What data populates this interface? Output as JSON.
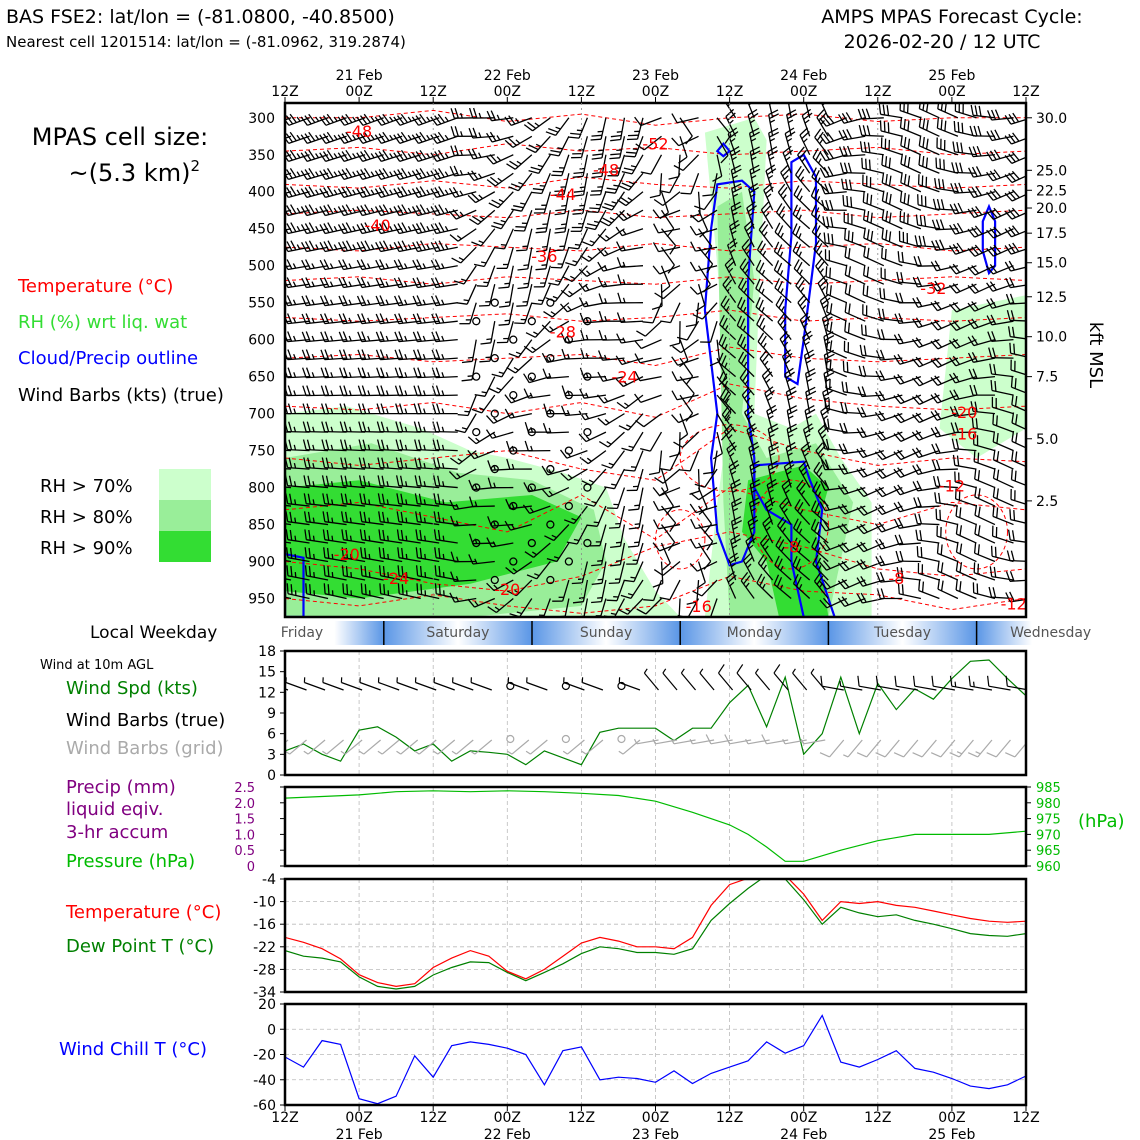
{
  "header": {
    "station_line": "BAS FSE2: lat/lon = (-81.0800, -40.8500)",
    "nearest_line": "Nearest cell 1201514: lat/lon = (-81.0962, 319.2874)",
    "forecast_title": "AMPS MPAS Forecast Cycle:",
    "forecast_cycle": "2026-02-20 / 12 UTC"
  },
  "cell_size": {
    "line1": "MPAS cell size:",
    "line2": "~(5.3 km)",
    "exp": "2"
  },
  "legend_top": {
    "temperature": "Temperature (°C)",
    "rh": "RH (%) wrt liq. wat",
    "cloud": "Cloud/Precip outline",
    "wind": "Wind Barbs (kts) (true)",
    "rh70": "RH > 70%",
    "rh80": "RH > 80%",
    "rh90": "RH > 90%"
  },
  "legend_wind": {
    "title": "Wind at 10m AGL",
    "speed": "Wind Spd (kts)",
    "barbs_true": "Wind Barbs (true)",
    "barbs_grid": "Wind Barbs (grid)"
  },
  "legend_precip": {
    "line1": "Precip (mm)",
    "line2": "liquid eqiv.",
    "line3": "3-hr accum",
    "pressure": "Pressure (hPa)"
  },
  "legend_temp": {
    "temp": "Temperature (°C)",
    "dew": "Dew Point T (°C)"
  },
  "legend_chill": {
    "label": "Wind Chill T (°C)"
  },
  "weekday": {
    "label": "Local Weekday",
    "days": [
      "Friday",
      "Saturday",
      "Sunday",
      "Monday",
      "Tuesday",
      "Wednesday"
    ]
  },
  "time_axis": {
    "ticks": [
      "12Z",
      "00Z",
      "12Z",
      "00Z",
      "12Z",
      "00Z",
      "12Z",
      "00Z",
      "12Z",
      "00Z",
      "12Z"
    ],
    "dates": [
      "21 Feb",
      "22 Feb",
      "23 Feb",
      "24 Feb",
      "25 Feb"
    ],
    "date_under": [
      1,
      3,
      5,
      7,
      9
    ]
  },
  "colors": {
    "temperature": "#ff0000",
    "rh_label": "#33dd33",
    "rh70": "#ccffcc",
    "rh80": "#99ee99",
    "rh90": "#33dd33",
    "cloud": "#0000ff",
    "wind_speed": "#008000",
    "grid_barbs": "#aaaaaa",
    "precip": "#800080",
    "pressure": "#00bb00",
    "dewpoint": "#008000",
    "wind_chill": "#0000ff",
    "weekday_band": "#5a96e6"
  },
  "chart_data": [
    {
      "type": "heatmap",
      "name": "upper-air cross-section",
      "x_range_hours": [
        0,
        120
      ],
      "yaxis_left_label_values": [
        300,
        350,
        400,
        450,
        500,
        550,
        600,
        650,
        700,
        750,
        800,
        850,
        900,
        950
      ],
      "yaxis_right_label": "kft MSL",
      "yaxis_right_ticks": [
        {
          "kft": "30.0",
          "p": 300
        },
        {
          "kft": "25.0",
          "p": 371
        },
        {
          "kft": "22.5",
          "p": 398
        },
        {
          "kft": "20.0",
          "p": 422
        },
        {
          "kft": "17.5",
          "p": 456
        },
        {
          "kft": "15.0",
          "p": 496
        },
        {
          "kft": "12.5",
          "p": 542
        },
        {
          "kft": "10.0",
          "p": 596
        },
        {
          "kft": "7.5",
          "p": 650
        },
        {
          "kft": "5.0",
          "p": 734
        },
        {
          "kft": "2.5",
          "p": 818
        }
      ],
      "temperature_labels": [
        {
          "t": "-48",
          "h": 12,
          "p": 318
        },
        {
          "t": "-52",
          "h": 60,
          "p": 335
        },
        {
          "t": "-48",
          "h": 52,
          "p": 370
        },
        {
          "t": "-44",
          "h": 45,
          "p": 403
        },
        {
          "t": "-40",
          "h": 15,
          "p": 445
        },
        {
          "t": "-36",
          "h": 42,
          "p": 487
        },
        {
          "t": "-32",
          "h": 105,
          "p": 530
        },
        {
          "t": "-28",
          "h": 45,
          "p": 589
        },
        {
          "t": "-24",
          "h": 55,
          "p": 650
        },
        {
          "t": "-20",
          "h": 110,
          "p": 698
        },
        {
          "t": "-16",
          "h": 110,
          "p": 727
        },
        {
          "t": "-12",
          "h": 108,
          "p": 797
        },
        {
          "t": "-20",
          "h": 10,
          "p": 890
        },
        {
          "t": "-24",
          "h": 18,
          "p": 922
        },
        {
          "t": "-20",
          "h": 36,
          "p": 937
        },
        {
          "t": "-16",
          "h": 67,
          "p": 960
        },
        {
          "t": "-8",
          "h": 82,
          "p": 880
        },
        {
          "t": "-8",
          "h": 99,
          "p": 922
        },
        {
          "t": "-12",
          "h": 118,
          "p": 957
        }
      ]
    },
    {
      "type": "line",
      "name": "10m wind speed",
      "x_hours": [
        0,
        3,
        6,
        9,
        12,
        15,
        18,
        21,
        24,
        27,
        30,
        33,
        36,
        39,
        42,
        45,
        48,
        51,
        54,
        57,
        60,
        63,
        66,
        69,
        72,
        75,
        78,
        81,
        84,
        87,
        90,
        93,
        96,
        99,
        102,
        105,
        108,
        111,
        114,
        117,
        120
      ],
      "values": [
        3.5,
        4.5,
        3,
        2,
        6.5,
        7,
        5.5,
        3.5,
        4.5,
        2,
        3.5,
        3.3,
        3,
        1.5,
        3.5,
        2.5,
        1.5,
        6.2,
        6.8,
        6.8,
        6.8,
        5,
        6.8,
        6.8,
        10.5,
        13,
        7,
        14.2,
        3,
        6,
        14.2,
        6,
        13.3,
        9.5,
        12.5,
        11,
        14,
        16.5,
        16.7,
        14,
        11.5
      ],
      "ylim": [
        0,
        18
      ],
      "yticks": [
        0,
        3,
        6,
        9,
        12,
        15,
        18
      ]
    },
    {
      "type": "line",
      "name": "pressure and precip",
      "x_hours": [
        0,
        6,
        12,
        18,
        24,
        30,
        36,
        42,
        48,
        54,
        60,
        66,
        72,
        75,
        78,
        81,
        84,
        90,
        96,
        102,
        108,
        114,
        120
      ],
      "pressure": [
        981.5,
        982,
        982.5,
        983.5,
        983.8,
        983.5,
        983.8,
        983.5,
        983,
        982.3,
        980.5,
        977,
        973,
        970,
        966,
        961.5,
        961.5,
        965,
        968,
        970,
        970,
        970,
        971
      ],
      "pressure_ylim": [
        960,
        985
      ],
      "pressure_ticks": [
        960,
        965,
        970,
        975,
        980,
        985
      ],
      "pressure_unit": "(hPa)",
      "precip_ylim": [
        0,
        2.5
      ],
      "precip_ticks": [
        "0",
        "0.5",
        "1.0",
        "1.5",
        "2.0",
        "2.5"
      ]
    },
    {
      "type": "line",
      "name": "temperature and dew point",
      "x_hours": [
        0,
        3,
        6,
        9,
        12,
        15,
        18,
        21,
        24,
        27,
        30,
        33,
        36,
        39,
        42,
        45,
        48,
        51,
        54,
        57,
        60,
        63,
        66,
        69,
        72,
        75,
        78,
        81,
        84,
        87,
        90,
        93,
        96,
        99,
        102,
        105,
        108,
        111,
        114,
        117,
        120
      ],
      "temperature": [
        -19.5,
        -20.8,
        -22.5,
        -25.2,
        -29.4,
        -31.5,
        -32.5,
        -31.8,
        -27.5,
        -25.0,
        -23.0,
        -24.5,
        -28.5,
        -30.5,
        -28.0,
        -24.5,
        -21.0,
        -19.5,
        -20.5,
        -22.0,
        -22.0,
        -22.5,
        -19.5,
        -11.0,
        -5.5,
        -3.8,
        -2.5,
        -3.0,
        -8.0,
        -15.0,
        -10.0,
        -10.5,
        -10.0,
        -11.0,
        -11.5,
        -12.5,
        -13.5,
        -14.5,
        -15.2,
        -15.5,
        -15.2
      ],
      "dewpoint": [
        -23.0,
        -24.5,
        -25.0,
        -26.0,
        -30.0,
        -32.5,
        -33.2,
        -32.5,
        -29.5,
        -27.5,
        -26.0,
        -26.2,
        -28.8,
        -31.0,
        -28.8,
        -26.5,
        -23.8,
        -22.0,
        -22.5,
        -23.5,
        -23.5,
        -24.0,
        -22.5,
        -15.0,
        -10.5,
        -6.5,
        -3.0,
        -4.0,
        -9.5,
        -16.0,
        -11.5,
        -13.0,
        -14.0,
        -13.5,
        -15.0,
        -16.0,
        -17.2,
        -18.5,
        -19.0,
        -19.2,
        -18.5
      ],
      "ylim": [
        -34,
        -4
      ],
      "yticks": [
        -34,
        -28,
        -22,
        -16,
        -10,
        -4
      ]
    },
    {
      "type": "line",
      "name": "wind chill",
      "x_hours": [
        0,
        3,
        6,
        9,
        12,
        15,
        18,
        21,
        24,
        27,
        30,
        33,
        36,
        39,
        42,
        45,
        48,
        51,
        54,
        57,
        60,
        63,
        66,
        69,
        72,
        75,
        78,
        81,
        84,
        87,
        90,
        93,
        96,
        99,
        102,
        105,
        108,
        111,
        114,
        117,
        120
      ],
      "values": [
        -22,
        -30,
        -9,
        -12,
        -55,
        -59,
        -53,
        -21,
        -38,
        -13,
        -10,
        -12,
        -15,
        -20,
        -44,
        -17,
        -14,
        -40,
        -38,
        -39,
        -42,
        -33,
        -43,
        -35,
        -30,
        -25,
        -10,
        -19,
        -13,
        11,
        -26,
        -30,
        -24,
        -17,
        -31,
        -34,
        -39,
        -45,
        -47,
        -44,
        -37
      ],
      "ylim": [
        -60,
        20
      ],
      "yticks": [
        -60,
        -40,
        -20,
        0,
        20
      ]
    }
  ]
}
